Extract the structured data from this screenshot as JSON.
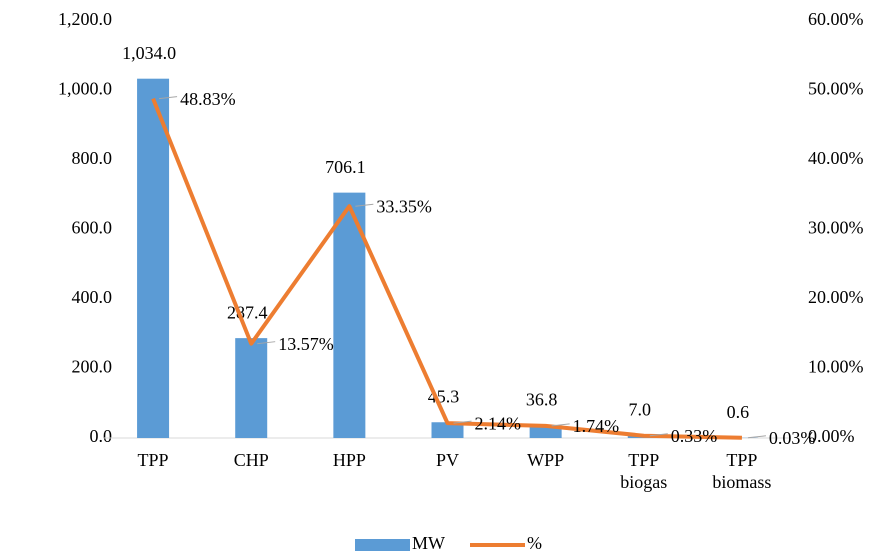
{
  "chart_data": {
    "type": "bar",
    "categories": [
      "TPP",
      "CHP",
      "HPP",
      "PV",
      "WPP",
      "TPP biogas",
      "TPP biomass"
    ],
    "series": [
      {
        "name": "MW",
        "type": "bar",
        "color": "#5b9bd5",
        "values": [
          1034.0,
          287.4,
          706.1,
          45.3,
          36.8,
          7.0,
          0.6
        ],
        "value_labels": [
          "1,034.0",
          "287.4",
          "706.1",
          "45.3",
          "36.8",
          "7.0",
          "0.6"
        ]
      },
      {
        "name": "%",
        "type": "line",
        "axis": "y2",
        "color": "#ed7d31",
        "values": [
          48.83,
          13.57,
          33.35,
          2.14,
          1.74,
          0.33,
          0.03
        ],
        "value_labels": [
          "48.83%",
          "13.57%",
          "33.35%",
          "2.14%",
          "1.74%",
          "0.33%",
          "0.03%"
        ]
      }
    ],
    "ylim": [
      0,
      1200
    ],
    "yticks": [
      {
        "value": 0,
        "label": "0.0"
      },
      {
        "value": 200,
        "label": "200.0"
      },
      {
        "value": 400,
        "label": "400.0"
      },
      {
        "value": 600,
        "label": "600.0"
      },
      {
        "value": 800,
        "label": "800.0"
      },
      {
        "value": 1000,
        "label": "1,000.0"
      },
      {
        "value": 1200,
        "label": "1,200.0"
      }
    ],
    "y2lim": [
      0,
      60
    ],
    "y2ticks": [
      {
        "value": 0,
        "label": "0.00%"
      },
      {
        "value": 10,
        "label": "10.00%"
      },
      {
        "value": 20,
        "label": "20.00%"
      },
      {
        "value": 30,
        "label": "30.00%"
      },
      {
        "value": 40,
        "label": "40.00%"
      },
      {
        "value": 50,
        "label": "50.00%"
      },
      {
        "value": 60,
        "label": "60.00%"
      }
    ],
    "grid": false,
    "legend": "bottom"
  }
}
